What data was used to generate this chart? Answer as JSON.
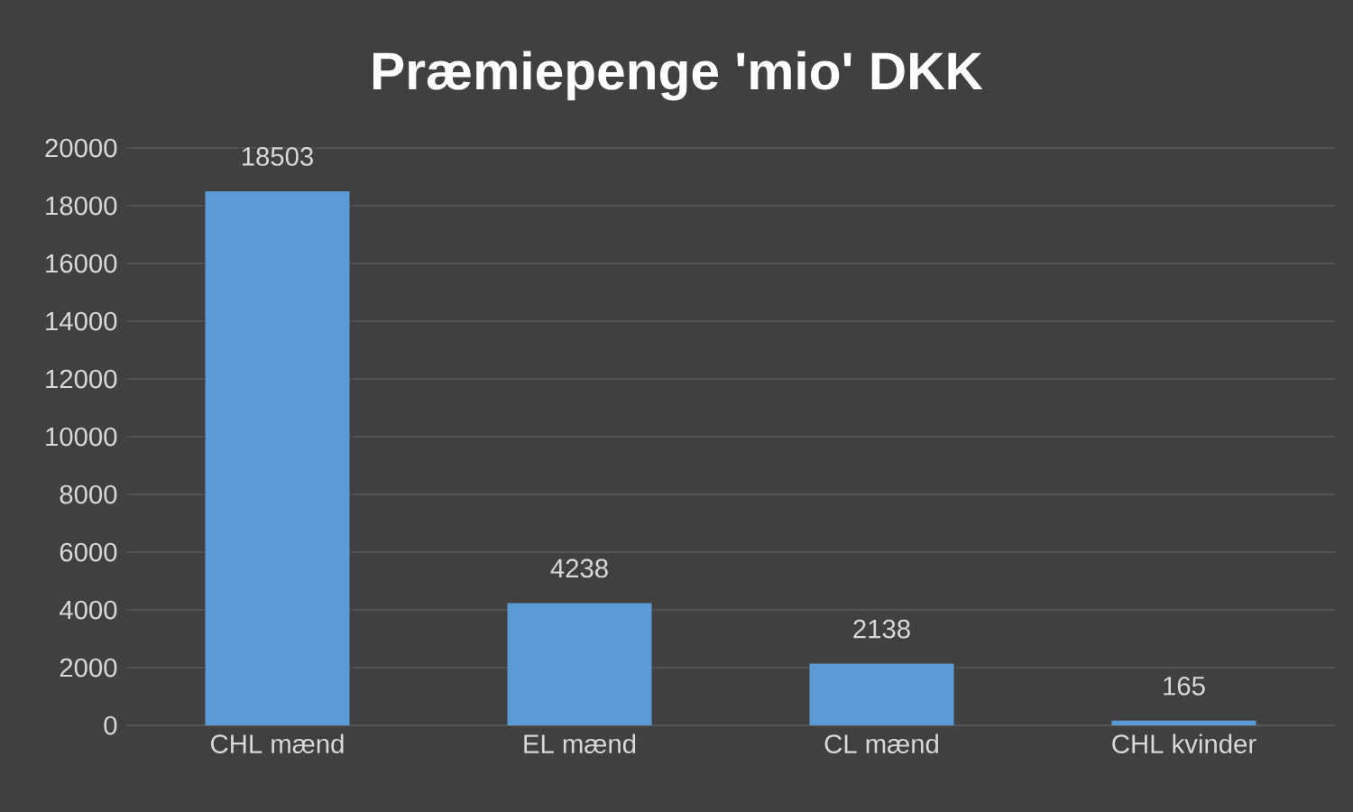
{
  "chart_data": {
    "type": "bar",
    "title": "Præmiepenge 'mio' DKK",
    "categories": [
      "CHL mænd",
      "EL mænd",
      "CL mænd",
      "CHL kvinder"
    ],
    "values": [
      18503,
      4238,
      2138,
      165
    ],
    "color": "#5b9bd5",
    "ylim": [
      0,
      20000
    ],
    "yticks": [
      0,
      2000,
      4000,
      6000,
      8000,
      10000,
      12000,
      14000,
      16000,
      18000,
      20000
    ],
    "grid": "y",
    "data_labels": true
  }
}
